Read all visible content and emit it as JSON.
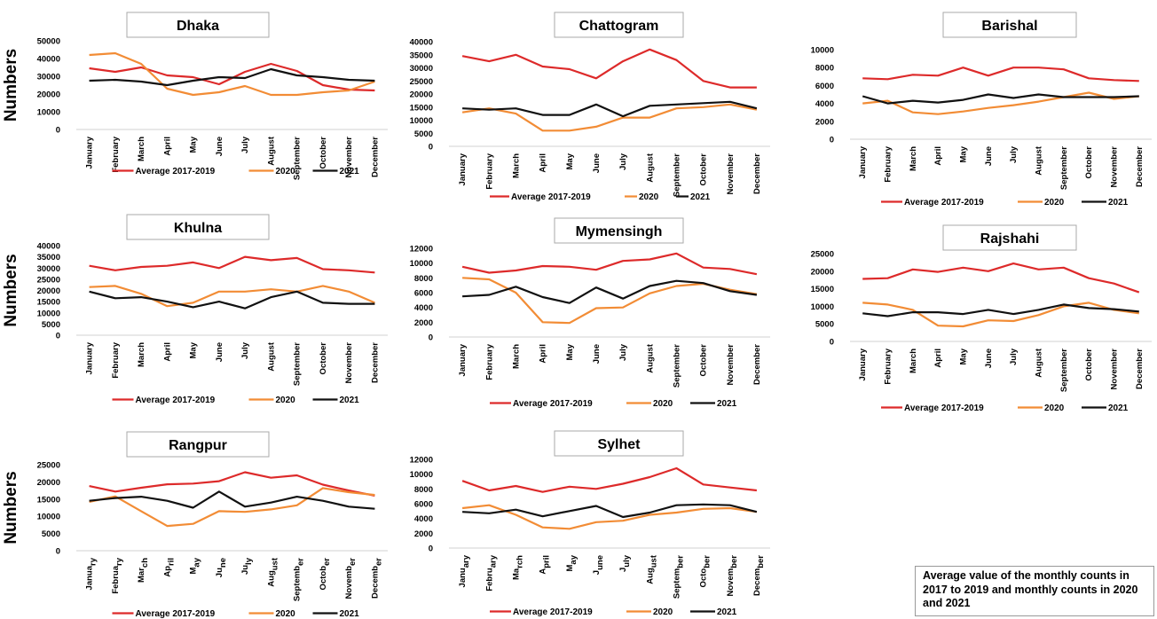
{
  "chart_data": [
    {
      "type": "line",
      "title": "Dhaka",
      "ylabel": "Numbers",
      "ylim": [
        0,
        50000
      ],
      "yticks": [
        0,
        10000,
        20000,
        30000,
        40000,
        50000
      ],
      "categories": [
        "January",
        "February",
        "March",
        "April",
        "May",
        "June",
        "July",
        "August",
        "September",
        "October",
        "November",
        "December"
      ],
      "series": [
        {
          "name": "Average 2017-2019",
          "color": "#dd2a2a",
          "values": [
            34500,
            32500,
            35000,
            30500,
            29500,
            25500,
            32500,
            37000,
            33000,
            25000,
            22500,
            22000
          ]
        },
        {
          "name": "2020",
          "color": "#f28c35",
          "values": [
            42000,
            43000,
            37000,
            23000,
            19500,
            21000,
            24500,
            19500,
            19500,
            21000,
            22000,
            27000
          ]
        },
        {
          "name": "2021",
          "color": "#111111",
          "values": [
            27500,
            28000,
            27000,
            25000,
            27500,
            29500,
            29000,
            34000,
            30500,
            29500,
            28000,
            27500
          ]
        }
      ]
    },
    {
      "type": "line",
      "title": "Chattogram",
      "ylabel": "",
      "ylim": [
        0,
        40000
      ],
      "yticks": [
        0,
        5000,
        10000,
        15000,
        20000,
        25000,
        30000,
        35000,
        40000
      ],
      "categories": [
        "January",
        "February",
        "March",
        "April",
        "May",
        "June",
        "July",
        "August",
        "September",
        "October",
        "November",
        "December"
      ],
      "series": [
        {
          "name": "Average 2017-2019",
          "color": "#dd2a2a",
          "values": [
            34500,
            32500,
            35000,
            30500,
            29500,
            26000,
            32500,
            37000,
            33000,
            25000,
            22500,
            22500
          ]
        },
        {
          "name": "2020",
          "color": "#f28c35",
          "values": [
            13000,
            14500,
            12500,
            6000,
            6000,
            7500,
            11000,
            11000,
            14500,
            15000,
            16000,
            14000
          ]
        },
        {
          "name": "2021",
          "color": "#111111",
          "values": [
            14500,
            14000,
            14500,
            12000,
            12000,
            16000,
            11500,
            15500,
            16000,
            16500,
            17000,
            14500
          ]
        }
      ]
    },
    {
      "type": "line",
      "title": "Barishal",
      "ylabel": "",
      "ylim": [
        0,
        10000
      ],
      "yticks": [
        0,
        2000,
        4000,
        6000,
        8000,
        10000
      ],
      "categories": [
        "January",
        "February",
        "March",
        "April",
        "May",
        "June",
        "July",
        "August",
        "September",
        "October",
        "November",
        "December"
      ],
      "series": [
        {
          "name": "Average 2017-2019",
          "color": "#dd2a2a",
          "values": [
            6800,
            6700,
            7200,
            7100,
            8000,
            7100,
            8000,
            8000,
            7800,
            6800,
            6600,
            6500
          ]
        },
        {
          "name": "2020",
          "color": "#f28c35",
          "values": [
            4000,
            4300,
            3000,
            2800,
            3100,
            3500,
            3800,
            4200,
            4700,
            5200,
            4500,
            4800
          ]
        },
        {
          "name": "2021",
          "color": "#111111",
          "values": [
            4800,
            4000,
            4300,
            4100,
            4400,
            5000,
            4600,
            5000,
            4700,
            4700,
            4700,
            4800
          ]
        }
      ]
    },
    {
      "type": "line",
      "title": "Khulna",
      "ylabel": "Numbers",
      "ylim": [
        0,
        40000
      ],
      "yticks": [
        0,
        5000,
        10000,
        15000,
        20000,
        25000,
        30000,
        35000,
        40000
      ],
      "categories": [
        "January",
        "February",
        "March",
        "April",
        "May",
        "June",
        "July",
        "August",
        "September",
        "October",
        "November",
        "December"
      ],
      "series": [
        {
          "name": "Average 2017-2019",
          "color": "#dd2a2a",
          "values": [
            31000,
            29000,
            30500,
            31000,
            32500,
            30000,
            35000,
            33500,
            34500,
            29500,
            29000,
            28000
          ]
        },
        {
          "name": "2020",
          "color": "#f28c35",
          "values": [
            21500,
            22000,
            18500,
            13000,
            14500,
            19500,
            19500,
            20500,
            19500,
            22000,
            19500,
            14500
          ]
        },
        {
          "name": "2021",
          "color": "#111111",
          "values": [
            19500,
            16500,
            17000,
            15000,
            12500,
            15000,
            12000,
            17000,
            19500,
            14500,
            14000,
            14000
          ]
        }
      ]
    },
    {
      "type": "line",
      "title": "Mymensingh",
      "ylabel": "",
      "ylim": [
        0,
        12000
      ],
      "yticks": [
        0,
        2000,
        4000,
        6000,
        8000,
        10000,
        12000
      ],
      "categories": [
        "January",
        "February",
        "March",
        "April",
        "May",
        "June",
        "July",
        "August",
        "September",
        "October",
        "November",
        "December"
      ],
      "series": [
        {
          "name": "Average 2017-2019",
          "color": "#dd2a2a",
          "values": [
            9500,
            8700,
            9000,
            9600,
            9500,
            9100,
            10300,
            10500,
            11300,
            9400,
            9200,
            8500
          ]
        },
        {
          "name": "2020",
          "color": "#f28c35",
          "values": [
            8000,
            7800,
            6000,
            2000,
            1900,
            3900,
            4000,
            5900,
            6900,
            7200,
            6400,
            5800
          ]
        },
        {
          "name": "2021",
          "color": "#111111",
          "values": [
            5500,
            5700,
            6800,
            5400,
            4600,
            6700,
            5200,
            6900,
            7600,
            7300,
            6200,
            5700
          ]
        }
      ]
    },
    {
      "type": "line",
      "title": "Rajshahi",
      "ylabel": "",
      "ylim": [
        0,
        25000
      ],
      "yticks": [
        0,
        5000,
        10000,
        15000,
        20000,
        25000
      ],
      "categories": [
        "January",
        "February",
        "March",
        "April",
        "May",
        "June",
        "July",
        "August",
        "September",
        "October",
        "November",
        "December"
      ],
      "series": [
        {
          "name": "Average 2017-2019",
          "color": "#dd2a2a",
          "values": [
            17800,
            18000,
            20500,
            19800,
            21000,
            20000,
            22200,
            20500,
            21000,
            18000,
            16500,
            14000
          ]
        },
        {
          "name": "2020",
          "color": "#f28c35",
          "values": [
            11000,
            10500,
            9000,
            4500,
            4300,
            6000,
            5800,
            7500,
            10000,
            11000,
            9000,
            8000
          ]
        },
        {
          "name": "2021",
          "color": "#111111",
          "values": [
            8000,
            7200,
            8300,
            8300,
            7800,
            9000,
            7800,
            9000,
            10500,
            9500,
            9200,
            8500
          ]
        }
      ]
    },
    {
      "type": "line",
      "title": "Rangpur",
      "ylabel": "Numbers",
      "ylim": [
        0,
        25000
      ],
      "yticks": [
        0,
        5000,
        10000,
        15000,
        20000,
        25000
      ],
      "categories": [
        "Janua|ry",
        "Februa|ry",
        "Mar|ch",
        "Ap|ril",
        "M|ay",
        "Ju|ne",
        "Ju|ly",
        "Aug|ust",
        "Septemb|er",
        "Octob|er",
        "Novemb|er",
        "Decemb|er"
      ],
      "series": [
        {
          "name": "Average 2017-2019",
          "color": "#dd2a2a",
          "values": [
            18800,
            17200,
            18300,
            19300,
            19500,
            20200,
            22800,
            21200,
            21900,
            19200,
            17500,
            16000
          ]
        },
        {
          "name": "2020",
          "color": "#f28c35",
          "values": [
            14200,
            15800,
            11500,
            7200,
            7800,
            11500,
            11300,
            12000,
            13200,
            18200,
            17000,
            16200
          ]
        },
        {
          "name": "2021",
          "color": "#111111",
          "values": [
            14500,
            15300,
            15700,
            14500,
            12500,
            17200,
            12800,
            14000,
            15700,
            14500,
            12800,
            12200
          ]
        }
      ]
    },
    {
      "type": "line",
      "title": "Sylhet",
      "ylabel": "",
      "ylim": [
        0,
        12000
      ],
      "yticks": [
        0,
        2000,
        4000,
        6000,
        8000,
        10000,
        12000
      ],
      "categories": [
        "Janu|ary",
        "Febru|ary",
        "Ma|rch",
        "A|pril",
        "M|ay",
        "J|une",
        "J|uly",
        "Aug|ust",
        "Septem|ber",
        "Octo|ber",
        "Novem|ber",
        "Decem|ber"
      ],
      "series": [
        {
          "name": "Average 2017-2019",
          "color": "#dd2a2a",
          "values": [
            9100,
            7800,
            8400,
            7600,
            8300,
            8000,
            8700,
            9600,
            10800,
            8600,
            8200,
            7800
          ]
        },
        {
          "name": "2020",
          "color": "#f28c35",
          "values": [
            5400,
            5800,
            4500,
            2800,
            2600,
            3500,
            3700,
            4500,
            4800,
            5300,
            5400,
            4900
          ]
        },
        {
          "name": "2021",
          "color": "#111111",
          "values": [
            4900,
            4700,
            5200,
            4300,
            5000,
            5700,
            4200,
            4800,
            5800,
            5900,
            5800,
            4900
          ]
        }
      ]
    }
  ],
  "note": "Average value of the monthly counts in 2017 to 2019 and monthly counts in 2020 and 2021"
}
